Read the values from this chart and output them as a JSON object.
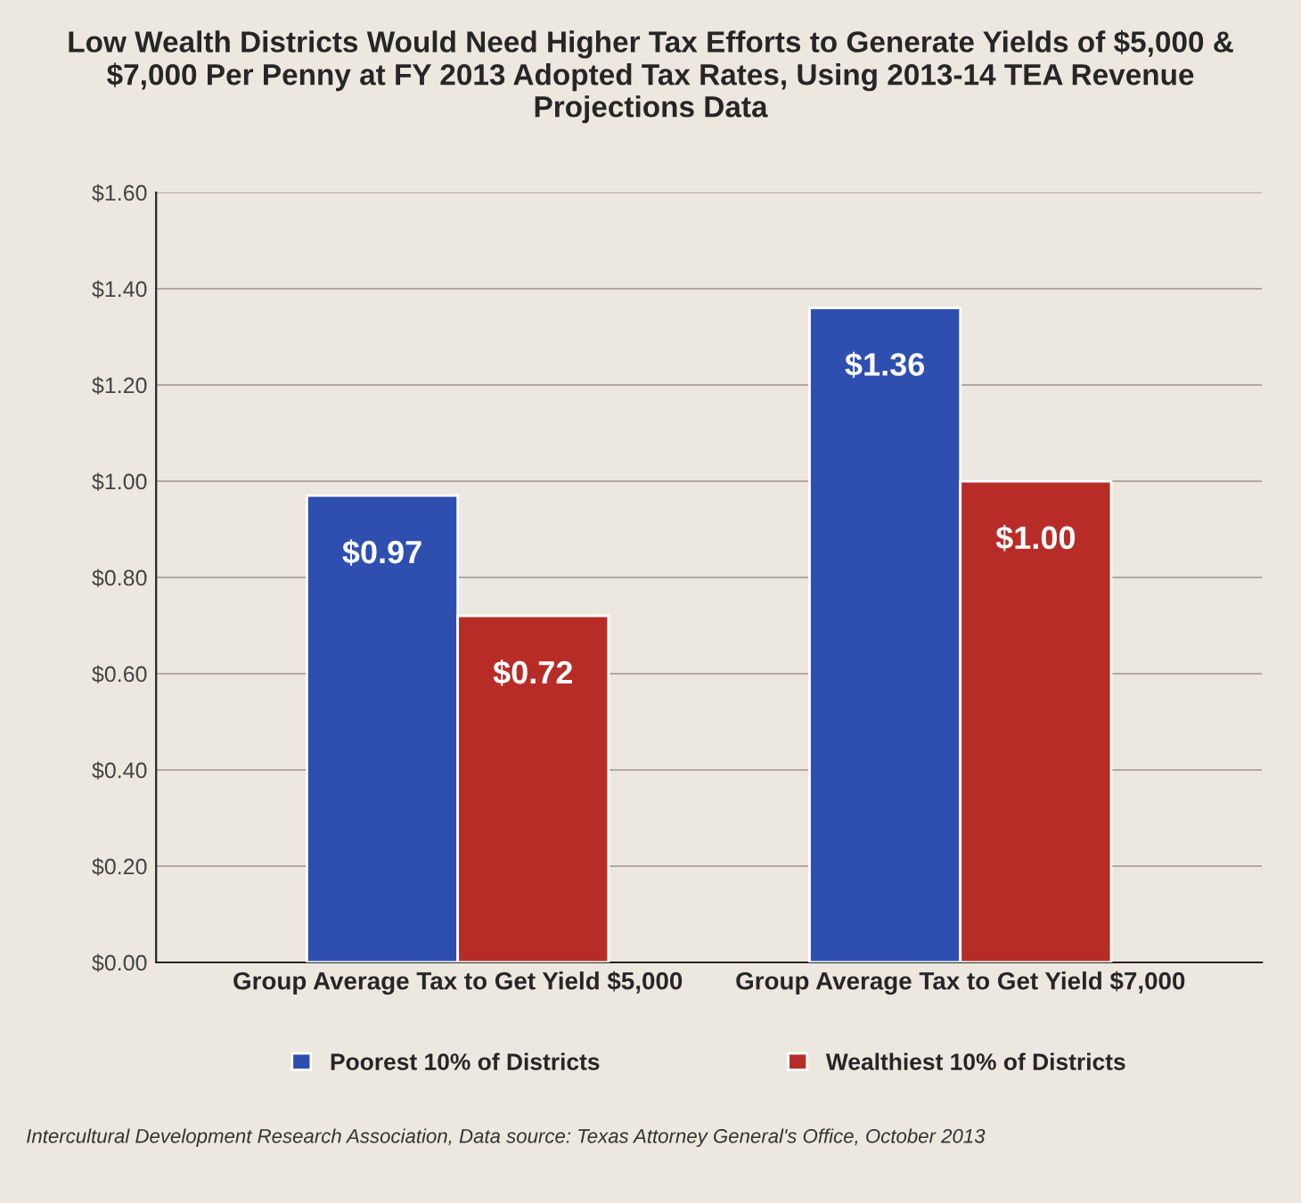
{
  "chart_data": {
    "type": "bar",
    "title": "Low Wealth Districts Would Need Higher Tax Efforts to Generate Yields of $5,000 & $7,000 Per Penny at FY 2013 Adopted Tax Rates, Using 2013-14 TEA Revenue Projections Data",
    "categories": [
      "Group Average Tax to Get Yield $5,000",
      "Group Average Tax to Get Yield $7,000"
    ],
    "series": [
      {
        "name": "Poorest 10% of Districts",
        "color": "#2e4fb0",
        "values": [
          0.97,
          1.36
        ],
        "value_labels": [
          "$0.97",
          "$1.36"
        ]
      },
      {
        "name": "Wealthiest 10% of Districts",
        "color": "#b82c28",
        "values": [
          0.72,
          1.0
        ],
        "value_labels": [
          "$0.72",
          "$1.00"
        ]
      }
    ],
    "ylim": [
      0,
      1.6
    ],
    "yticks": [
      {
        "value": 0,
        "label": "$0.00"
      },
      {
        "value": 0.2,
        "label": "$0.20"
      },
      {
        "value": 0.4,
        "label": "$0.40"
      },
      {
        "value": 0.6,
        "label": "$0.60"
      },
      {
        "value": 0.8,
        "label": "$0.80"
      },
      {
        "value": 1.0,
        "label": "$1.00"
      },
      {
        "value": 1.2,
        "label": "$1.20"
      },
      {
        "value": 1.4,
        "label": "$1.40"
      },
      {
        "value": 1.6,
        "label": "$1.60"
      }
    ],
    "grid": "y",
    "legend": "bottom",
    "annotations": [
      "Intercultural Development Research Association, Data source: Texas Attorney General's Office, October 2013"
    ]
  }
}
